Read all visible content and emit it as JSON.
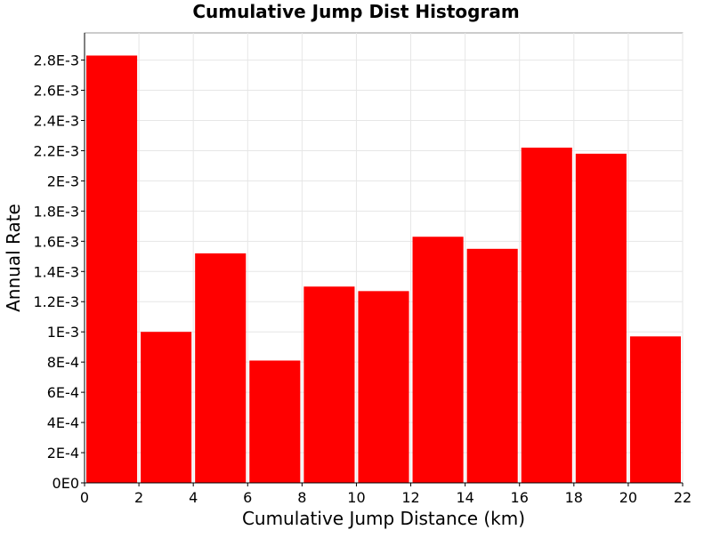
{
  "chart_data": {
    "type": "bar",
    "title": "Cumulative Jump Dist Histogram",
    "xlabel": "Cumulative Jump Distance (km)",
    "ylabel": "Annual Rate",
    "xlim": [
      0,
      22
    ],
    "ylim": [
      0,
      0.00298
    ],
    "grid": true,
    "legend": "none",
    "bar_color": "#ff0000",
    "x_ticks": [
      {
        "value": 0,
        "label": "0"
      },
      {
        "value": 2,
        "label": "2"
      },
      {
        "value": 4,
        "label": "4"
      },
      {
        "value": 6,
        "label": "6"
      },
      {
        "value": 8,
        "label": "8"
      },
      {
        "value": 10,
        "label": "10"
      },
      {
        "value": 12,
        "label": "12"
      },
      {
        "value": 14,
        "label": "14"
      },
      {
        "value": 16,
        "label": "16"
      },
      {
        "value": 18,
        "label": "18"
      },
      {
        "value": 20,
        "label": "20"
      },
      {
        "value": 22,
        "label": "22"
      }
    ],
    "y_ticks": [
      {
        "value": 0,
        "label": "0E0"
      },
      {
        "value": 0.0002,
        "label": "2E-4"
      },
      {
        "value": 0.0004,
        "label": "4E-4"
      },
      {
        "value": 0.0006,
        "label": "6E-4"
      },
      {
        "value": 0.0008,
        "label": "8E-4"
      },
      {
        "value": 0.001,
        "label": "1E-3"
      },
      {
        "value": 0.0012,
        "label": "1.2E-3"
      },
      {
        "value": 0.0014,
        "label": "1.4E-3"
      },
      {
        "value": 0.0016,
        "label": "1.6E-3"
      },
      {
        "value": 0.0018,
        "label": "1.8E-3"
      },
      {
        "value": 0.002,
        "label": "2E-3"
      },
      {
        "value": 0.0022,
        "label": "2.2E-3"
      },
      {
        "value": 0.0024,
        "label": "2.4E-3"
      },
      {
        "value": 0.0026,
        "label": "2.6E-3"
      },
      {
        "value": 0.0028,
        "label": "2.8E-3"
      }
    ],
    "bins": [
      {
        "x_start": 0,
        "x_end": 2,
        "value": 0.00283
      },
      {
        "x_start": 2,
        "x_end": 4,
        "value": 0.001
      },
      {
        "x_start": 4,
        "x_end": 6,
        "value": 0.00152
      },
      {
        "x_start": 6,
        "x_end": 8,
        "value": 0.00081
      },
      {
        "x_start": 8,
        "x_end": 10,
        "value": 0.0013
      },
      {
        "x_start": 10,
        "x_end": 12,
        "value": 0.00127
      },
      {
        "x_start": 12,
        "x_end": 14,
        "value": 0.00163
      },
      {
        "x_start": 14,
        "x_end": 16,
        "value": 0.00155
      },
      {
        "x_start": 16,
        "x_end": 18,
        "value": 0.00222
      },
      {
        "x_start": 18,
        "x_end": 20,
        "value": 0.00218
      },
      {
        "x_start": 20,
        "x_end": 22,
        "value": 0.00097
      }
    ]
  }
}
